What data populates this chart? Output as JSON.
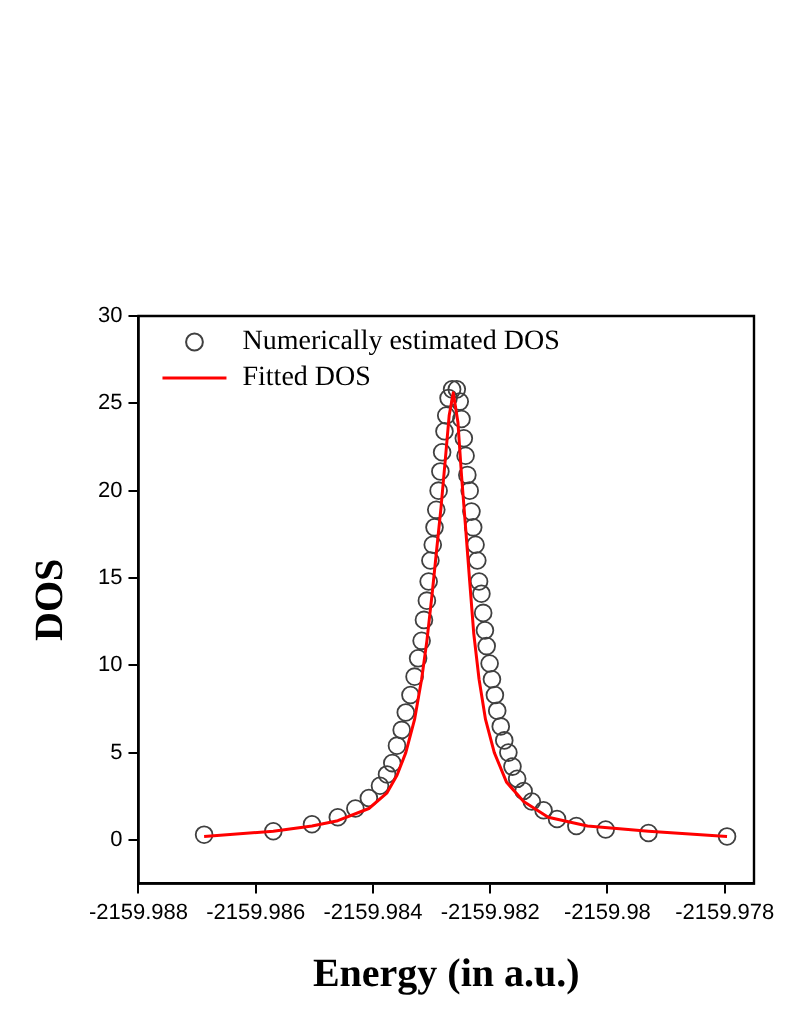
{
  "chart_data": {
    "type": "scatter",
    "xlabel": "Energy (in a.u.)",
    "ylabel": "DOS",
    "xlim": [
      -2159.988,
      -2159.9775
    ],
    "xticks": [
      -2159.988,
      -2159.986,
      -2159.984,
      -2159.982,
      -2159.98,
      -2159.978
    ],
    "ylim": [
      -2.5,
      30
    ],
    "yticks": [
      0,
      5,
      10,
      15,
      20,
      25,
      30
    ],
    "grid": false,
    "legend": "top left",
    "series": [
      {
        "name": "Numerically estimated DOS",
        "type": "scatter",
        "marker": "circle",
        "color": "#404040",
        "x": [
          -2159.98688,
          -2159.9857,
          -2159.98504,
          -2159.9846,
          -2159.9843,
          -2159.98407,
          -2159.98388,
          -2159.98376,
          -2159.98367,
          -2159.98359,
          -2159.98351,
          -2159.98344,
          -2159.98336,
          -2159.98329,
          -2159.98323,
          -2159.98317,
          -2159.98313,
          -2159.98308,
          -2159.98305,
          -2159.98302,
          -2159.98298,
          -2159.98295,
          -2159.98292,
          -2159.98288,
          -2159.98285,
          -2159.98282,
          -2159.98278,
          -2159.98275,
          -2159.98271,
          -2159.98265,
          -2159.98257,
          -2159.98252,
          -2159.98249,
          -2159.98245,
          -2159.98242,
          -2159.98239,
          -2159.98235,
          -2159.98232,
          -2159.98229,
          -2159.98225,
          -2159.98222,
          -2159.98219,
          -2159.98215,
          -2159.98212,
          -2159.98209,
          -2159.98206,
          -2159.98201,
          -2159.98197,
          -2159.98192,
          -2159.98188,
          -2159.98182,
          -2159.98176,
          -2159.98169,
          -2159.98162,
          -2159.98154,
          -2159.98143,
          -2159.98129,
          -2159.98109,
          -2159.98086,
          -2159.98053,
          -2159.98003,
          -2159.9793,
          -2159.97796
        ],
        "values": [
          0.3,
          0.5,
          0.9,
          1.3,
          1.8,
          2.4,
          3.1,
          3.75,
          4.4,
          5.4,
          6.3,
          7.3,
          8.3,
          9.35,
          10.4,
          11.4,
          12.6,
          13.7,
          14.8,
          16.0,
          16.9,
          17.9,
          18.9,
          20.0,
          21.1,
          22.2,
          23.4,
          24.3,
          25.3,
          25.8,
          25.8,
          25.1,
          24.1,
          23.0,
          22.0,
          20.9,
          20.0,
          18.8,
          17.9,
          16.9,
          16.0,
          14.8,
          14.1,
          13.0,
          12.0,
          11.1,
          10.1,
          9.2,
          8.3,
          7.4,
          6.5,
          5.7,
          5.0,
          4.2,
          3.5,
          2.8,
          2.2,
          1.7,
          1.2,
          0.8,
          0.6,
          0.4,
          0.2
        ]
      },
      {
        "name": "Fitted DOS",
        "type": "line",
        "marker": "none",
        "line_style": "solid",
        "color": "#ff0000",
        "x": [
          -2159.98688,
          -2159.9857,
          -2159.98504,
          -2159.9846,
          -2159.98407,
          -2159.98376,
          -2159.98359,
          -2159.98344,
          -2159.98329,
          -2159.98317,
          -2159.98308,
          -2159.98299,
          -2159.98292,
          -2159.98284,
          -2159.98276,
          -2159.9827,
          -2159.98263,
          -2159.98255,
          -2159.98249,
          -2159.98242,
          -2159.98235,
          -2159.98228,
          -2159.98219,
          -2159.98208,
          -2159.98193,
          -2159.98172,
          -2159.98143,
          -2159.98101,
          -2159.98034,
          -2159.9793,
          -2159.97796
        ],
        "values": [
          0.2,
          0.5,
          0.8,
          1.1,
          1.8,
          2.7,
          3.7,
          5.0,
          6.9,
          9.2,
          11.4,
          14.1,
          16.4,
          19.0,
          22.0,
          24.3,
          25.6,
          23.9,
          20.9,
          17.9,
          14.8,
          11.8,
          9.2,
          6.9,
          5.0,
          3.3,
          2.2,
          1.3,
          0.8,
          0.5,
          0.2
        ]
      }
    ]
  }
}
